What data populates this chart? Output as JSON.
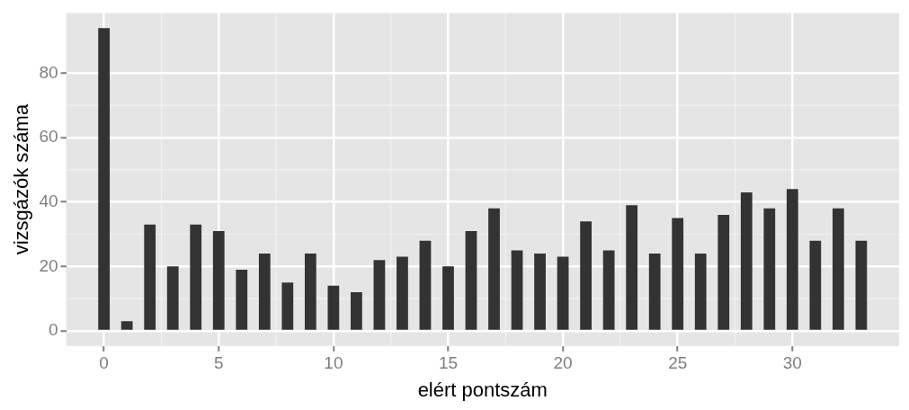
{
  "chart_data": {
    "type": "bar",
    "xlabel": "elért pontszám",
    "ylabel": "vizsgázók száma",
    "x": [
      0,
      1,
      2,
      3,
      4,
      5,
      6,
      7,
      8,
      9,
      10,
      11,
      12,
      13,
      14,
      15,
      16,
      17,
      18,
      19,
      20,
      21,
      22,
      23,
      24,
      25,
      26,
      27,
      28,
      29,
      30,
      31,
      32,
      33
    ],
    "values": [
      94,
      3,
      33,
      20,
      33,
      31,
      19,
      24,
      15,
      24,
      14,
      12,
      22,
      23,
      28,
      20,
      31,
      38,
      25,
      24,
      23,
      34,
      25,
      39,
      24,
      35,
      24,
      36,
      43,
      38,
      44,
      28,
      38,
      28
    ],
    "color": "#333333",
    "xlim": [
      -1.65,
      34.65
    ],
    "xticks": [
      0,
      5,
      10,
      15,
      20,
      25,
      30
    ],
    "ylim": [
      -4.7,
      98.7
    ],
    "yticks": [
      0,
      20,
      40,
      60,
      80
    ],
    "grid": true,
    "legend": false
  }
}
